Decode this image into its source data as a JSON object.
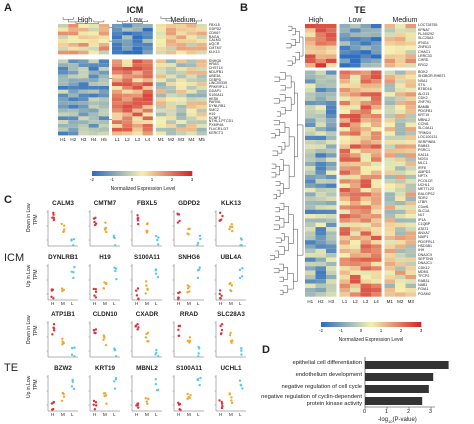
{
  "panelA": {
    "letter": "A",
    "title": "ICM",
    "groups": [
      "High",
      "Low",
      "Medium"
    ],
    "columns": [
      "H1",
      "H2",
      "H3",
      "H4",
      "H5",
      "L1",
      "L2",
      "L3",
      "L4",
      "M1",
      "M2",
      "M3",
      "M4",
      "M5"
    ],
    "genes_top": [
      "FBXL5",
      "GDPD2",
      "CDK6?",
      "RAGA",
      "CALM3",
      "UQCR",
      "CMTM7",
      "KLK13"
    ],
    "genes_bottom": [
      "SNHG6",
      "HRAS",
      "CHST14",
      "NDUFB1",
      "UBE3A",
      "CEBPD",
      "LINC00339",
      "PRKRIP1-1",
      "GDAP1",
      "S100A11",
      "HES6",
      "PARVA",
      "DYNLRB1",
      "SMC2",
      "H19",
      "KCNF1",
      "NTHL1-PTCD1",
      "PXMP4A",
      "FLVCR1-DT",
      "KERCT3"
    ],
    "colorbar_ticks": [
      "-2",
      "-1",
      "0",
      "1",
      "2",
      "3"
    ],
    "colorbar_label": "Normalized Expression Level"
  },
  "panelB": {
    "letter": "B",
    "title": "TE",
    "groups": [
      "High",
      "Low",
      "Medium"
    ],
    "columns": [
      "H1",
      "H2",
      "H3",
      "L1",
      "L2",
      "L3",
      "L4",
      "M1",
      "M2",
      "M3"
    ],
    "genes": [
      "LOC728755",
      "KPNA7",
      "FLJ40292",
      "SLC25A3",
      "IFNG4",
      "ZNF613",
      "CHAC1",
      "LRRC33",
      "CHRD",
      "ERG2",
      "BOK2",
      "SH3BGR-RHBT1",
      "NSA1",
      "STIL",
      "BTBD16",
      "ALG13",
      "CDK2",
      "ZNF791",
      "BAMBI",
      "PDGFB1",
      "KRT19",
      "MBNL2",
      "CCNI1",
      "SLC4A11",
      "TRIM24",
      "LOC100131",
      "SERPINB1",
      "RAB43",
      "PSRC1",
      "KA114",
      "NOS4",
      "MLC1",
      "IRF8",
      "AMPD3",
      "NPTX",
      "PCOLCE",
      "UCHL1",
      "METTL23",
      "RALGPS2",
      "SDR2",
      "LTBR",
      "C3orf1",
      "SLC1A",
      "NLT",
      "IP1A",
      "C1QBP",
      "ATAT1",
      "ANXA7",
      "NAIP1",
      "PDGFRL1",
      "HSD3B1",
      "IHH",
      "DNAJC9",
      "SEPTIN5",
      "DNAJC1",
      "CDK12",
      "MDM1",
      "TFCP2",
      "RAB31",
      "NAB1",
      "FGIA1",
      "PGAM2"
    ],
    "colorbar_ticks": [
      "-2",
      "-1",
      "0",
      "1",
      "2",
      "3"
    ],
    "colorbar_label": "Normalized Expression Level"
  },
  "panelC": {
    "letter": "C",
    "row_labels": [
      "ICM",
      "TE"
    ],
    "side_labels": [
      "Down in Low",
      "Up in Low",
      "Down in Low",
      "Up in Low"
    ],
    "ylabel": "TPM",
    "xticks": [
      "H",
      "M",
      "L"
    ],
    "rows": [
      [
        "CALM3",
        "CMTM7",
        "FBXL5",
        "GDPD2",
        "KLK13"
      ],
      [
        "DYNLRB1",
        "H19",
        "S100A11",
        "SNHG6",
        "UBL4A"
      ],
      [
        "ATP1B1",
        "CLDN10",
        "CXADR",
        "RRAD",
        "SLC28A3"
      ],
      [
        "BZW2",
        "KRT19",
        "MBNL2",
        "S100A11",
        "UCHL1"
      ]
    ],
    "colors": {
      "H": "#e0303a",
      "M": "#f0a830",
      "L": "#5cc8e6"
    }
  },
  "panelD": {
    "letter": "D",
    "chart_data": {
      "type": "bar",
      "categories": [
        "epithelial cell differentiation",
        "endothelium development",
        "negative regulation of cell cycle",
        "negative regulation of cyclin-dependent protein kinase activity"
      ],
      "values": [
        3.8,
        3.1,
        2.9,
        2.6
      ],
      "xlabel": "-log10(P-value)",
      "xticks": [
        "0",
        "1",
        "2",
        "3"
      ],
      "xlim": [
        0,
        4
      ]
    },
    "labels": [
      "epithelial cell differentiation",
      "endothelium development",
      "negative regulation of cell cycle",
      "negative regulation of cyclin-dependent",
      "protein kinase activity"
    ],
    "xlabel_main": "-log",
    "xlabel_sub": "10",
    "xlabel_tail": "(P-value)",
    "bar_color": "#333333"
  },
  "colors": {
    "low": "#2f6fc0",
    "mid": "#f5f0b0",
    "high": "#d4282a"
  }
}
